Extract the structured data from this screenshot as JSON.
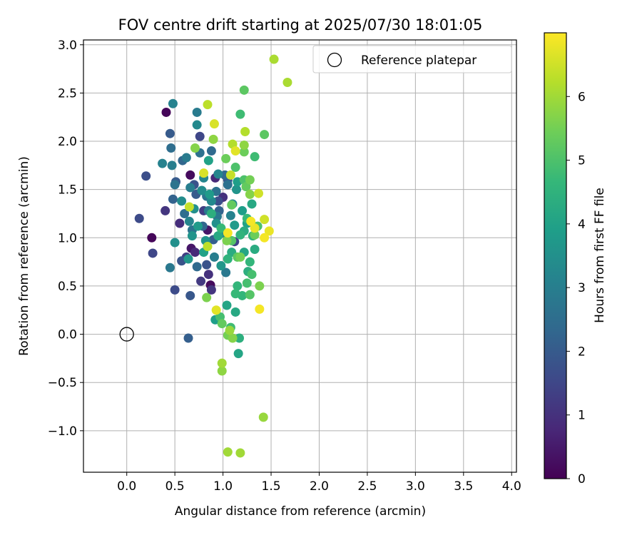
{
  "chart_data": {
    "type": "scatter",
    "title": "FOV centre drift starting at 2025/07/30 18:01:05",
    "xlabel": "Angular distance from reference (arcmin)",
    "ylabel": "Rotation from reference (arcmin)",
    "xlim": [
      -0.45,
      4.05
    ],
    "ylim": [
      -1.43,
      3.05
    ],
    "xticks": [
      "0.0",
      "0.5",
      "1.0",
      "1.5",
      "2.0",
      "2.5",
      "3.0",
      "3.5",
      "4.0"
    ],
    "yticks": [
      "−1.0",
      "−0.5",
      "0.0",
      "0.5",
      "1.0",
      "1.5",
      "2.0",
      "2.5",
      "3.0"
    ],
    "grid": true,
    "legend": {
      "position": "top-right",
      "entries": [
        "Reference platepar"
      ]
    },
    "reference_point": {
      "x": 0.0,
      "y": 0.0,
      "name": "Reference platepar"
    },
    "colorbar": {
      "label": "Hours from first FF file",
      "range": [
        0,
        7
      ],
      "ticks": [
        "0",
        "1",
        "2",
        "3",
        "4",
        "5",
        "6"
      ],
      "colormap": "viridis",
      "stops": [
        "#440154",
        "#482878",
        "#3e4989",
        "#31688e",
        "#26828e",
        "#1f9e89",
        "#35b779",
        "#6ece58",
        "#b5de2b",
        "#fde725"
      ]
    },
    "points": [
      {
        "x": 0.41,
        "y": 2.3,
        "h": 0.1
      },
      {
        "x": 0.26,
        "y": 1.0,
        "h": 0.1
      },
      {
        "x": 0.66,
        "y": 1.65,
        "h": 0.2
      },
      {
        "x": 0.87,
        "y": 0.51,
        "h": 0.2
      },
      {
        "x": 0.67,
        "y": 0.89,
        "h": 0.4
      },
      {
        "x": 0.84,
        "y": 1.08,
        "h": 0.4
      },
      {
        "x": 0.71,
        "y": 0.85,
        "h": 0.8
      },
      {
        "x": 0.92,
        "y": 1.62,
        "h": 0.8
      },
      {
        "x": 0.55,
        "y": 1.15,
        "h": 0.9
      },
      {
        "x": 0.85,
        "y": 0.62,
        "h": 1.0
      },
      {
        "x": 1.0,
        "y": 1.42,
        "h": 1.0
      },
      {
        "x": 0.4,
        "y": 1.28,
        "h": 1.1
      },
      {
        "x": 0.88,
        "y": 0.46,
        "h": 1.1
      },
      {
        "x": 0.77,
        "y": 0.55,
        "h": 1.2
      },
      {
        "x": 0.8,
        "y": 1.28,
        "h": 1.3
      },
      {
        "x": 0.62,
        "y": 0.8,
        "h": 1.3
      },
      {
        "x": 1.12,
        "y": 0.96,
        "h": 1.4
      },
      {
        "x": 0.76,
        "y": 2.05,
        "h": 1.5
      },
      {
        "x": 0.27,
        "y": 0.84,
        "h": 1.5
      },
      {
        "x": 0.13,
        "y": 1.2,
        "h": 1.6
      },
      {
        "x": 0.5,
        "y": 0.46,
        "h": 1.6
      },
      {
        "x": 0.2,
        "y": 1.64,
        "h": 1.7
      },
      {
        "x": 0.95,
        "y": 1.38,
        "h": 1.7
      },
      {
        "x": 0.57,
        "y": 0.76,
        "h": 1.8
      },
      {
        "x": 0.7,
        "y": 1.55,
        "h": 1.8
      },
      {
        "x": 0.83,
        "y": 0.72,
        "h": 1.8
      },
      {
        "x": 1.05,
        "y": 1.6,
        "h": 1.9
      },
      {
        "x": 0.66,
        "y": 0.4,
        "h": 1.9
      },
      {
        "x": 0.51,
        "y": 1.58,
        "h": 2.0
      },
      {
        "x": 0.45,
        "y": 2.08,
        "h": 2.0
      },
      {
        "x": 0.72,
        "y": 1.45,
        "h": 2.0
      },
      {
        "x": 0.9,
        "y": 0.98,
        "h": 2.1
      },
      {
        "x": 0.64,
        "y": -0.04,
        "h": 2.1
      },
      {
        "x": 0.48,
        "y": 1.4,
        "h": 2.2
      },
      {
        "x": 0.96,
        "y": 1.28,
        "h": 2.2
      },
      {
        "x": 0.79,
        "y": 1.12,
        "h": 2.3
      },
      {
        "x": 0.58,
        "y": 1.8,
        "h": 2.3
      },
      {
        "x": 0.73,
        "y": 0.7,
        "h": 2.4
      },
      {
        "x": 1.02,
        "y": 1.65,
        "h": 2.4
      },
      {
        "x": 0.88,
        "y": 1.9,
        "h": 2.4
      },
      {
        "x": 0.46,
        "y": 1.93,
        "h": 2.5
      },
      {
        "x": 0.6,
        "y": 1.25,
        "h": 2.5
      },
      {
        "x": 1.05,
        "y": 1.55,
        "h": 2.6
      },
      {
        "x": 0.93,
        "y": 1.48,
        "h": 2.6
      },
      {
        "x": 0.76,
        "y": 1.88,
        "h": 2.6
      },
      {
        "x": 0.5,
        "y": 1.55,
        "h": 2.7
      },
      {
        "x": 0.83,
        "y": 1.43,
        "h": 2.7
      },
      {
        "x": 0.68,
        "y": 1.08,
        "h": 2.7
      },
      {
        "x": 1.03,
        "y": 0.64,
        "h": 2.8
      },
      {
        "x": 0.45,
        "y": 0.69,
        "h": 2.8
      },
      {
        "x": 0.94,
        "y": 1.22,
        "h": 2.8
      },
      {
        "x": 0.62,
        "y": 1.83,
        "h": 2.9
      },
      {
        "x": 0.73,
        "y": 2.3,
        "h": 2.9
      },
      {
        "x": 0.85,
        "y": 1.28,
        "h": 2.9
      },
      {
        "x": 0.47,
        "y": 1.75,
        "h": 3.0
      },
      {
        "x": 0.66,
        "y": 1.52,
        "h": 3.0
      },
      {
        "x": 0.91,
        "y": 0.8,
        "h": 3.0
      },
      {
        "x": 1.08,
        "y": 1.23,
        "h": 3.1
      },
      {
        "x": 0.48,
        "y": 2.39,
        "h": 3.1
      },
      {
        "x": 0.37,
        "y": 1.77,
        "h": 3.1
      },
      {
        "x": 0.8,
        "y": 1.62,
        "h": 3.2
      },
      {
        "x": 0.95,
        "y": 1.66,
        "h": 3.2
      },
      {
        "x": 0.65,
        "y": 1.17,
        "h": 3.2
      },
      {
        "x": 0.73,
        "y": 2.17,
        "h": 3.3
      },
      {
        "x": 0.88,
        "y": 1.38,
        "h": 3.3
      },
      {
        "x": 1.0,
        "y": 1.05,
        "h": 3.3
      },
      {
        "x": 0.57,
        "y": 1.38,
        "h": 3.4
      },
      {
        "x": 0.78,
        "y": 1.49,
        "h": 3.4
      },
      {
        "x": 1.1,
        "y": 1.35,
        "h": 3.4
      },
      {
        "x": 0.7,
        "y": 1.3,
        "h": 3.5
      },
      {
        "x": 0.93,
        "y": 1.15,
        "h": 3.5
      },
      {
        "x": 0.5,
        "y": 0.95,
        "h": 3.5
      },
      {
        "x": 0.68,
        "y": 1.02,
        "h": 3.6
      },
      {
        "x": 1.14,
        "y": 1.5,
        "h": 3.6
      },
      {
        "x": 0.82,
        "y": 0.97,
        "h": 3.6
      },
      {
        "x": 0.64,
        "y": 0.78,
        "h": 3.7
      },
      {
        "x": 0.98,
        "y": 0.71,
        "h": 3.7
      },
      {
        "x": 1.12,
        "y": 1.13,
        "h": 3.8
      },
      {
        "x": 0.86,
        "y": 1.45,
        "h": 3.8
      },
      {
        "x": 0.74,
        "y": 1.12,
        "h": 3.8
      },
      {
        "x": 1.15,
        "y": 1.58,
        "h": 3.9
      },
      {
        "x": 0.92,
        "y": 0.15,
        "h": 3.9
      },
      {
        "x": 1.2,
        "y": 1.28,
        "h": 3.9
      },
      {
        "x": 0.8,
        "y": 0.85,
        "h": 4.0
      },
      {
        "x": 1.25,
        "y": 1.15,
        "h": 4.0
      },
      {
        "x": 0.85,
        "y": 1.8,
        "h": 4.0
      },
      {
        "x": 1.16,
        "y": -0.2,
        "h": 4.1
      },
      {
        "x": 1.04,
        "y": 0.3,
        "h": 4.1
      },
      {
        "x": 1.22,
        "y": 0.85,
        "h": 4.1
      },
      {
        "x": 0.95,
        "y": 1.02,
        "h": 4.2
      },
      {
        "x": 1.3,
        "y": 1.35,
        "h": 4.2
      },
      {
        "x": 1.13,
        "y": 0.23,
        "h": 4.2
      },
      {
        "x": 1.22,
        "y": 1.07,
        "h": 4.3
      },
      {
        "x": 1.09,
        "y": 0.85,
        "h": 4.3
      },
      {
        "x": 1.33,
        "y": 0.88,
        "h": 4.3
      },
      {
        "x": 0.88,
        "y": 1.25,
        "h": 4.4
      },
      {
        "x": 1.17,
        "y": -0.04,
        "h": 4.4
      },
      {
        "x": 1.26,
        "y": 0.65,
        "h": 4.4
      },
      {
        "x": 1.18,
        "y": 1.03,
        "h": 4.5
      },
      {
        "x": 1.05,
        "y": 0.78,
        "h": 4.5
      },
      {
        "x": 1.31,
        "y": 1.02,
        "h": 4.5
      },
      {
        "x": 1.15,
        "y": 0.5,
        "h": 4.6
      },
      {
        "x": 1.28,
        "y": 0.75,
        "h": 4.6
      },
      {
        "x": 1.2,
        "y": 0.4,
        "h": 4.6
      },
      {
        "x": 0.98,
        "y": 1.1,
        "h": 4.7
      },
      {
        "x": 1.25,
        "y": 1.2,
        "h": 4.7
      },
      {
        "x": 1.13,
        "y": 0.42,
        "h": 4.7
      },
      {
        "x": 1.33,
        "y": 1.84,
        "h": 4.8
      },
      {
        "x": 1.18,
        "y": 2.28,
        "h": 4.8
      },
      {
        "x": 1.08,
        "y": 0.07,
        "h": 4.8
      },
      {
        "x": 1.25,
        "y": 0.53,
        "h": 4.9
      },
      {
        "x": 0.97,
        "y": 0.18,
        "h": 4.9
      },
      {
        "x": 1.3,
        "y": 0.62,
        "h": 4.9
      },
      {
        "x": 1.22,
        "y": 1.6,
        "h": 5.0
      },
      {
        "x": 1.13,
        "y": 1.73,
        "h": 5.0
      },
      {
        "x": 1.36,
        "y": 1.12,
        "h": 5.0
      },
      {
        "x": 1.28,
        "y": 0.41,
        "h": 5.1
      },
      {
        "x": 1.09,
        "y": 0.97,
        "h": 5.1
      },
      {
        "x": 1.22,
        "y": 2.53,
        "h": 5.2
      },
      {
        "x": 1.15,
        "y": 0.8,
        "h": 5.2
      },
      {
        "x": 1.43,
        "y": 2.07,
        "h": 5.2
      },
      {
        "x": 1.24,
        "y": 1.53,
        "h": 5.3
      },
      {
        "x": 1.09,
        "y": 1.34,
        "h": 5.3
      },
      {
        "x": 0.99,
        "y": 0.11,
        "h": 5.3
      },
      {
        "x": 1.33,
        "y": 1.03,
        "h": 5.4
      },
      {
        "x": 1.22,
        "y": 1.89,
        "h": 5.4
      },
      {
        "x": 1.03,
        "y": 1.82,
        "h": 5.4
      },
      {
        "x": 1.05,
        "y": -0.01,
        "h": 5.5
      },
      {
        "x": 1.18,
        "y": 0.8,
        "h": 5.5
      },
      {
        "x": 1.28,
        "y": 1.6,
        "h": 5.5
      },
      {
        "x": 0.83,
        "y": 0.38,
        "h": 5.6
      },
      {
        "x": 1.04,
        "y": 0.97,
        "h": 5.6
      },
      {
        "x": 1.38,
        "y": 0.5,
        "h": 5.6
      },
      {
        "x": 0.71,
        "y": 1.93,
        "h": 5.7
      },
      {
        "x": 1.28,
        "y": 1.45,
        "h": 5.7
      },
      {
        "x": 1.1,
        "y": -0.04,
        "h": 5.7
      },
      {
        "x": 0.9,
        "y": 2.02,
        "h": 5.8
      },
      {
        "x": 0.99,
        "y": -0.38,
        "h": 5.8
      },
      {
        "x": 1.22,
        "y": 1.96,
        "h": 5.8
      },
      {
        "x": 1.07,
        "y": 0.04,
        "h": 5.9
      },
      {
        "x": 1.42,
        "y": -0.86,
        "h": 5.9
      },
      {
        "x": 1.05,
        "y": -1.22,
        "h": 6.0
      },
      {
        "x": 1.18,
        "y": -1.23,
        "h": 6.0
      },
      {
        "x": 0.99,
        "y": -0.3,
        "h": 6.0
      },
      {
        "x": 1.53,
        "y": 2.85,
        "h": 6.1
      },
      {
        "x": 1.67,
        "y": 2.61,
        "h": 6.1
      },
      {
        "x": 1.1,
        "y": 1.97,
        "h": 6.2
      },
      {
        "x": 1.23,
        "y": 2.1,
        "h": 6.2
      },
      {
        "x": 0.84,
        "y": 2.38,
        "h": 6.3
      },
      {
        "x": 0.84,
        "y": 0.91,
        "h": 6.3
      },
      {
        "x": 1.08,
        "y": 1.65,
        "h": 6.4
      },
      {
        "x": 0.65,
        "y": 1.32,
        "h": 6.4
      },
      {
        "x": 1.37,
        "y": 1.46,
        "h": 6.5
      },
      {
        "x": 1.43,
        "y": 1.19,
        "h": 6.5
      },
      {
        "x": 0.91,
        "y": 2.18,
        "h": 6.6
      },
      {
        "x": 0.8,
        "y": 1.67,
        "h": 6.6
      },
      {
        "x": 0.93,
        "y": 0.25,
        "h": 6.7
      },
      {
        "x": 1.13,
        "y": 1.9,
        "h": 6.7
      },
      {
        "x": 1.48,
        "y": 1.07,
        "h": 6.8
      },
      {
        "x": 1.33,
        "y": 1.1,
        "h": 6.8
      },
      {
        "x": 1.43,
        "y": 1.0,
        "h": 6.9
      },
      {
        "x": 1.38,
        "y": 0.26,
        "h": 6.9
      },
      {
        "x": 1.05,
        "y": 1.05,
        "h": 6.9
      },
      {
        "x": 1.29,
        "y": 1.17,
        "h": 6.9
      }
    ]
  }
}
